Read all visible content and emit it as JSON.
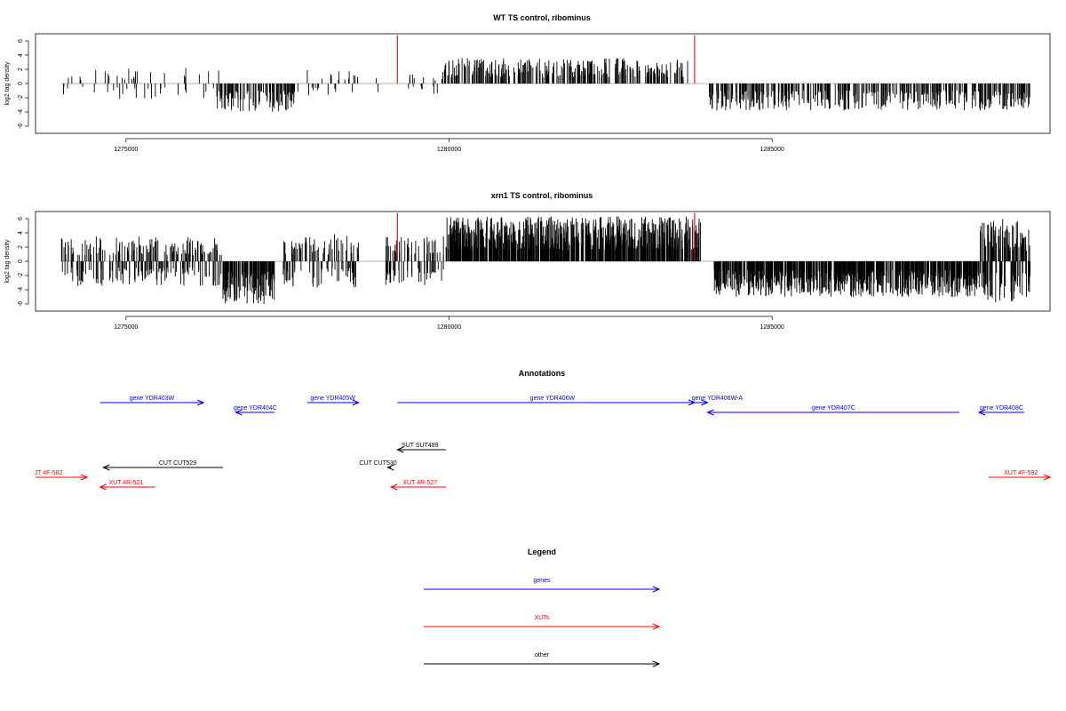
{
  "chart_data": [
    {
      "type": "bar",
      "title": "WT TS control, ribominus",
      "xlabel": "",
      "ylabel": "log2 tag density",
      "xlim": [
        1273600,
        1289300
      ],
      "ylim": [
        -7,
        7
      ],
      "x_ticks": [
        "1275000",
        "1280000",
        "1285000"
      ],
      "y_ticks": [
        "6",
        "4",
        "2",
        "0",
        "-2",
        "-4",
        "-6"
      ],
      "baseline": {
        "from": 1274000,
        "to": 1289000,
        "color": "#9e9e9e"
      },
      "markers": {
        "x": [
          1279200,
          1283800
        ],
        "color": "#ff0000"
      },
      "series": [
        {
          "segments": [
            {
              "from": 1274000,
              "to": 1274450,
              "direction": "mixed",
              "amp": 1.8,
              "density": 0.25,
              "seed": 11
            },
            {
              "from": 1274500,
              "to": 1276500,
              "direction": "mixed",
              "amp": 2.2,
              "density": 0.3,
              "seed": 12
            },
            {
              "from": 1276400,
              "to": 1277600,
              "direction": "down",
              "amp": 4.0,
              "density": 1.2,
              "seed": 13
            },
            {
              "from": 1277600,
              "to": 1279100,
              "direction": "mixed",
              "amp": 2.0,
              "density": 0.25,
              "seed": 14
            },
            {
              "from": 1279300,
              "to": 1279900,
              "direction": "mixed",
              "amp": 1.5,
              "density": 0.4,
              "seed": 15
            },
            {
              "from": 1279900,
              "to": 1283700,
              "direction": "up",
              "amp": 3.6,
              "density": 1.1,
              "seed": 16
            },
            {
              "from": 1284000,
              "to": 1289000,
              "direction": "down",
              "amp": 3.8,
              "density": 1.1,
              "seed": 17
            }
          ]
        }
      ]
    },
    {
      "type": "bar",
      "title": "xrn1 TS control, ribominus",
      "xlabel": "",
      "ylabel": "log2 tag density",
      "xlim": [
        1273600,
        1289300
      ],
      "ylim": [
        -7,
        7
      ],
      "x_ticks": [
        "1275000",
        "1280000",
        "1285000"
      ],
      "y_ticks": [
        "6",
        "4",
        "2",
        "0",
        "-2",
        "-4",
        "-6"
      ],
      "baseline": {
        "from": 1274000,
        "to": 1289000,
        "color": "#9e9e9e"
      },
      "markers": {
        "x": [
          1279200,
          1283800
        ],
        "color": "#ff0000"
      },
      "series": [
        {
          "segments": [
            {
              "from": 1274000,
              "to": 1276500,
              "direction": "mixed",
              "amp": 3.5,
              "density": 1.4,
              "seed": 21
            },
            {
              "from": 1276500,
              "to": 1277300,
              "direction": "down",
              "amp": 6.0,
              "density": 2.2,
              "seed": 22
            },
            {
              "from": 1277400,
              "to": 1278600,
              "direction": "mixed",
              "amp": 3.8,
              "density": 1.3,
              "seed": 23
            },
            {
              "from": 1279000,
              "to": 1279950,
              "direction": "mixed",
              "amp": 3.5,
              "density": 1.2,
              "seed": 24
            },
            {
              "from": 1279950,
              "to": 1283900,
              "direction": "up",
              "amp": 6.3,
              "density": 2.6,
              "seed": 25
            },
            {
              "from": 1284100,
              "to": 1288200,
              "direction": "down",
              "amp": 5.0,
              "density": 2.4,
              "seed": 26
            },
            {
              "from": 1288200,
              "to": 1289000,
              "direction": "mixed",
              "amp": 6.0,
              "density": 2.6,
              "seed": 27
            }
          ]
        }
      ]
    }
  ],
  "annotations": {
    "title": "Annotations",
    "features": [
      {
        "label": "gene YDR403W",
        "color": "#0000ff",
        "from": 1274600,
        "to": 1276200,
        "row": 1,
        "label_at": 1275400
      },
      {
        "label": "gene YDR404C",
        "color": "#0000ff",
        "from": 1277300,
        "to": 1276700,
        "row": 2,
        "label_at": 1277000
      },
      {
        "label": "gene YDR405W",
        "color": "#0000ff",
        "from": 1277800,
        "to": 1278600,
        "row": 1,
        "label_at": 1278200
      },
      {
        "label": "gene YDR406W",
        "color": "#0000ff",
        "from": 1279200,
        "to": 1283800,
        "row": 1,
        "label_at": 1281600
      },
      {
        "label": "gene YDR406W-A",
        "color": "#0000ff",
        "from": 1283600,
        "to": 1284000,
        "row": 1,
        "label_at": 1284150
      },
      {
        "label": "gene YDR407C",
        "color": "#0000ff",
        "from": 1287900,
        "to": 1284000,
        "row": 2,
        "label_at": 1285950
      },
      {
        "label": "gene YDR408C",
        "color": "#0000ff",
        "from": 1288900,
        "to": 1288200,
        "row": 2,
        "label_at": 1288550
      },
      {
        "label": "SUT SUT489",
        "color": "#000000",
        "from": 1279950,
        "to": 1279200,
        "row": 3,
        "label_at": 1279550
      },
      {
        "label": "CUT CUT529",
        "color": "#000000",
        "from": 1276500,
        "to": 1274650,
        "row": 4,
        "label_at": 1275800
      },
      {
        "label": "CUT CUT530",
        "color": "#000000",
        "from": 1279100,
        "to": 1279050,
        "row": 4,
        "label_at": 1278900
      },
      {
        "label": "JT 4F-582",
        "color": "#ff0000",
        "from": 1273600,
        "to": 1274400,
        "row": 5,
        "label_at": 1273800
      },
      {
        "label": "XUT 4R-521",
        "color": "#ff0000",
        "from": 1275450,
        "to": 1274600,
        "row": 6,
        "label_at": 1275000
      },
      {
        "label": "XUT 4R-527",
        "color": "#ff0000",
        "from": 1279950,
        "to": 1279100,
        "row": 6,
        "label_at": 1279550
      },
      {
        "label": "XUT 4F-592",
        "color": "#ff0000",
        "from": 1288350,
        "to": 1289300,
        "row": 5,
        "label_at": 1288850
      }
    ]
  },
  "legend": {
    "title": "Legend",
    "items": [
      {
        "label": "genes",
        "color": "#0000ff"
      },
      {
        "label": "XUTs",
        "color": "#ff0000"
      },
      {
        "label": "other",
        "color": "#000000"
      }
    ]
  }
}
